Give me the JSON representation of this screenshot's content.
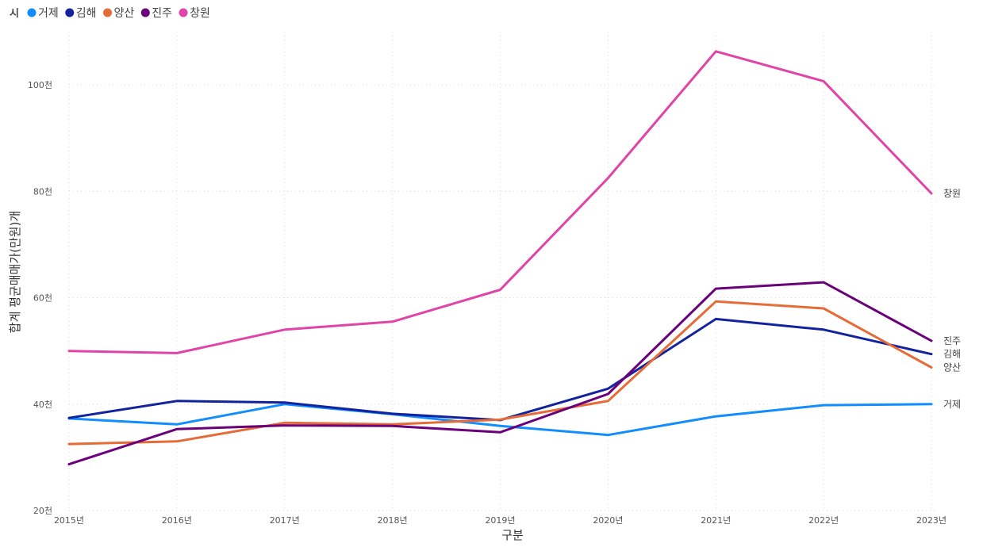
{
  "chart_data": {
    "type": "line",
    "title": "",
    "legend_title": "시",
    "legend_position": "top-left",
    "xlabel": "구분",
    "ylabel": "합계 평균매매가(만원)개",
    "x": [
      "2015년",
      "2016년",
      "2017년",
      "2018년",
      "2019년",
      "2020년",
      "2021년",
      "2022년",
      "2023년"
    ],
    "ylim": [
      20000,
      110000
    ],
    "yticks": [
      20000,
      40000,
      60000,
      80000,
      100000
    ],
    "ytick_labels": [
      "20천",
      "40천",
      "60천",
      "80천",
      "100천"
    ],
    "grid": true,
    "series": [
      {
        "name": "거제",
        "color": "#118DFF",
        "end_label": "거제",
        "values": [
          37300,
          36200,
          40000,
          38100,
          35900,
          34200,
          37700,
          39800,
          40000
        ]
      },
      {
        "name": "김해",
        "color": "#12239E",
        "end_label": "김해",
        "values": [
          37400,
          40600,
          40300,
          38200,
          37000,
          42900,
          56000,
          54000,
          49400
        ]
      },
      {
        "name": "양산",
        "color": "#E66C37",
        "end_label": "양산",
        "values": [
          32500,
          33000,
          36500,
          36200,
          37100,
          40600,
          59300,
          58000,
          46900
        ]
      },
      {
        "name": "진주",
        "color": "#6B007B",
        "end_label": "진주",
        "values": [
          28700,
          35300,
          36000,
          35900,
          34700,
          41900,
          61700,
          62900,
          51900
        ]
      },
      {
        "name": "창원",
        "color": "#E044A7",
        "end_label": "창원",
        "values": [
          50000,
          49600,
          54000,
          55500,
          61500,
          82500,
          106300,
          100700,
          79600
        ]
      }
    ]
  }
}
